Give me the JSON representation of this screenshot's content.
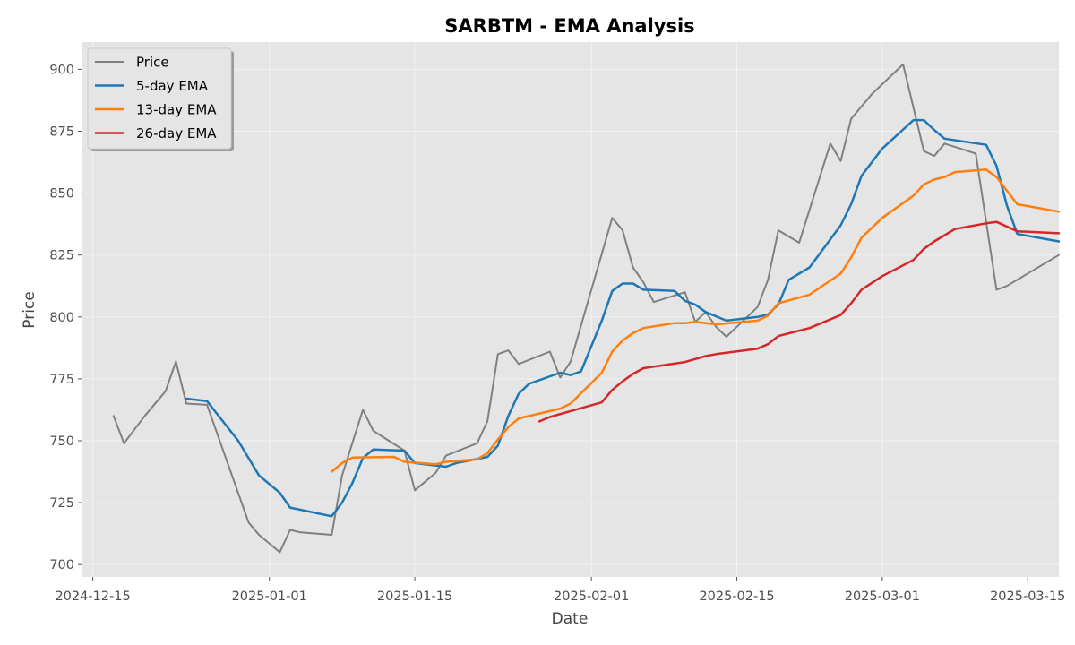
{
  "chart_data": {
    "type": "line",
    "title": "SARBTM - EMA Analysis",
    "xlabel": "Date",
    "ylabel": "Price",
    "xlim": [
      "2024-12-14",
      "2025-03-18"
    ],
    "ylim": [
      695,
      911
    ],
    "x_ticks": [
      "2024-12-15",
      "2025-01-01",
      "2025-01-15",
      "2025-02-01",
      "2025-02-15",
      "2025-03-01",
      "2025-03-15"
    ],
    "y_ticks": [
      700,
      725,
      750,
      775,
      800,
      825,
      850,
      875,
      900
    ],
    "grid": true,
    "legend_position": "top-left",
    "colors": {
      "background": "#e5e5e5",
      "grid": "#f2f2f2",
      "price": "#808080",
      "ema5": "#1f77b4",
      "ema13": "#ff7f0e",
      "ema26": "#d62728"
    },
    "series": [
      {
        "name": "Price",
        "color": "#808080",
        "points": [
          [
            "2024-12-17",
            760
          ],
          [
            "2024-12-18",
            749
          ],
          [
            "2024-12-20",
            760
          ],
          [
            "2024-12-22",
            770
          ],
          [
            "2024-12-23",
            782
          ],
          [
            "2024-12-24",
            765
          ],
          [
            "2024-12-26",
            764.5
          ],
          [
            "2024-12-30",
            717
          ],
          [
            "2024-12-31",
            712
          ],
          [
            "2025-01-02",
            705
          ],
          [
            "2025-01-03",
            714
          ],
          [
            "2025-01-04",
            713
          ],
          [
            "2025-01-07",
            712
          ],
          [
            "2025-01-08",
            736
          ],
          [
            "2025-01-10",
            762.5
          ],
          [
            "2025-01-11",
            754
          ],
          [
            "2025-01-14",
            746
          ],
          [
            "2025-01-15",
            730
          ],
          [
            "2025-01-17",
            737
          ],
          [
            "2025-01-18",
            744
          ],
          [
            "2025-01-21",
            749
          ],
          [
            "2025-01-22",
            758
          ],
          [
            "2025-01-23",
            785
          ],
          [
            "2025-01-24",
            786.5
          ],
          [
            "2025-01-25",
            781
          ],
          [
            "2025-01-28",
            786
          ],
          [
            "2025-01-29",
            775.5
          ],
          [
            "2025-01-30",
            782
          ],
          [
            "2025-02-03",
            840
          ],
          [
            "2025-02-04",
            835
          ],
          [
            "2025-02-05",
            820
          ],
          [
            "2025-02-06",
            814
          ],
          [
            "2025-02-07",
            806
          ],
          [
            "2025-02-10",
            810
          ],
          [
            "2025-02-11",
            798
          ],
          [
            "2025-02-12",
            802
          ],
          [
            "2025-02-13",
            796
          ],
          [
            "2025-02-14",
            792
          ],
          [
            "2025-02-17",
            804
          ],
          [
            "2025-02-18",
            815
          ],
          [
            "2025-02-19",
            835
          ],
          [
            "2025-02-21",
            830
          ],
          [
            "2025-02-24",
            870
          ],
          [
            "2025-02-25",
            863
          ],
          [
            "2025-02-26",
            880
          ],
          [
            "2025-02-28",
            890
          ],
          [
            "2025-03-03",
            902
          ],
          [
            "2025-03-05",
            867
          ],
          [
            "2025-03-06",
            865
          ],
          [
            "2025-03-07",
            870
          ],
          [
            "2025-03-10",
            866
          ],
          [
            "2025-03-12",
            811
          ],
          [
            "2025-03-13",
            812.5
          ],
          [
            "2025-03-18",
            825
          ]
        ]
      },
      {
        "name": "5-day EMA",
        "color": "#1f77b4",
        "points": [
          [
            "2024-12-24",
            767
          ],
          [
            "2024-12-26",
            766
          ],
          [
            "2024-12-29",
            750
          ],
          [
            "2024-12-31",
            736
          ],
          [
            "2025-01-02",
            729
          ],
          [
            "2025-01-03",
            723
          ],
          [
            "2025-01-07",
            719.5
          ],
          [
            "2025-01-08",
            725
          ],
          [
            "2025-01-09",
            733
          ],
          [
            "2025-01-10",
            743
          ],
          [
            "2025-01-11",
            746.5
          ],
          [
            "2025-01-14",
            746
          ],
          [
            "2025-01-15",
            741
          ],
          [
            "2025-01-18",
            739.5
          ],
          [
            "2025-01-19",
            741
          ],
          [
            "2025-01-22",
            743.5
          ],
          [
            "2025-01-23",
            748
          ],
          [
            "2025-01-24",
            760
          ],
          [
            "2025-01-25",
            769
          ],
          [
            "2025-01-26",
            773
          ],
          [
            "2025-01-29",
            777.5
          ],
          [
            "2025-01-30",
            776.5
          ],
          [
            "2025-01-31",
            778
          ],
          [
            "2025-02-02",
            798.5
          ],
          [
            "2025-02-03",
            810.5
          ],
          [
            "2025-02-04",
            813.5
          ],
          [
            "2025-02-05",
            813.5
          ],
          [
            "2025-02-06",
            811
          ],
          [
            "2025-02-09",
            810.5
          ],
          [
            "2025-02-10",
            806.5
          ],
          [
            "2025-02-11",
            805
          ],
          [
            "2025-02-12",
            802
          ],
          [
            "2025-02-14",
            798.5
          ],
          [
            "2025-02-17",
            800
          ],
          [
            "2025-02-18",
            801
          ],
          [
            "2025-02-19",
            805
          ],
          [
            "2025-02-20",
            815
          ],
          [
            "2025-02-22",
            820
          ],
          [
            "2025-02-25",
            837
          ],
          [
            "2025-02-26",
            845.5
          ],
          [
            "2025-02-27",
            857
          ],
          [
            "2025-03-01",
            868
          ],
          [
            "2025-03-04",
            879.5
          ],
          [
            "2025-03-05",
            879.5
          ],
          [
            "2025-03-06",
            875.5
          ],
          [
            "2025-03-07",
            872
          ],
          [
            "2025-03-11",
            869.5
          ],
          [
            "2025-03-12",
            861
          ],
          [
            "2025-03-13",
            845
          ],
          [
            "2025-03-14",
            833.5
          ],
          [
            "2025-03-18",
            830.5
          ]
        ]
      },
      {
        "name": "13-day EMA",
        "color": "#ff7f0e",
        "points": [
          [
            "2025-01-07",
            737.5
          ],
          [
            "2025-01-08",
            741
          ],
          [
            "2025-01-09",
            743.2
          ],
          [
            "2025-01-13",
            743.5
          ],
          [
            "2025-01-14",
            741.5
          ],
          [
            "2025-01-17",
            740.5
          ],
          [
            "2025-01-18",
            741.5
          ],
          [
            "2025-01-21",
            742.5
          ],
          [
            "2025-01-22",
            745
          ],
          [
            "2025-01-23",
            750.5
          ],
          [
            "2025-01-24",
            755.5
          ],
          [
            "2025-01-25",
            759
          ],
          [
            "2025-01-29",
            763
          ],
          [
            "2025-01-30",
            765
          ],
          [
            "2025-02-02",
            777.5
          ],
          [
            "2025-02-03",
            786
          ],
          [
            "2025-02-04",
            790.5
          ],
          [
            "2025-02-05",
            793.5
          ],
          [
            "2025-02-06",
            795.5
          ],
          [
            "2025-02-09",
            797.5
          ],
          [
            "2025-02-10",
            797.5
          ],
          [
            "2025-02-11",
            798
          ],
          [
            "2025-02-13",
            797
          ],
          [
            "2025-02-17",
            798.5
          ],
          [
            "2025-02-18",
            800.5
          ],
          [
            "2025-02-19",
            805.5
          ],
          [
            "2025-02-22",
            809
          ],
          [
            "2025-02-25",
            817.5
          ],
          [
            "2025-02-26",
            824
          ],
          [
            "2025-02-27",
            832
          ],
          [
            "2025-03-01",
            840
          ],
          [
            "2025-03-04",
            849
          ],
          [
            "2025-03-05",
            853.5
          ],
          [
            "2025-03-06",
            855.5
          ],
          [
            "2025-03-07",
            856.5
          ],
          [
            "2025-03-08",
            858.5
          ],
          [
            "2025-03-11",
            859.5
          ],
          [
            "2025-03-12",
            856.5
          ],
          [
            "2025-03-14",
            845.5
          ],
          [
            "2025-03-18",
            842.5
          ]
        ]
      },
      {
        "name": "26-day EMA",
        "color": "#d62728",
        "points": [
          [
            "2025-01-27",
            757.8
          ],
          [
            "2025-01-28",
            759.6
          ],
          [
            "2025-02-02",
            765.5
          ],
          [
            "2025-02-03",
            770.5
          ],
          [
            "2025-02-04",
            774
          ],
          [
            "2025-02-05",
            777
          ],
          [
            "2025-02-06",
            779.3
          ],
          [
            "2025-02-10",
            781.8
          ],
          [
            "2025-02-11",
            783
          ],
          [
            "2025-02-12",
            784.2
          ],
          [
            "2025-02-13",
            785
          ],
          [
            "2025-02-17",
            787.2
          ],
          [
            "2025-02-18",
            789
          ],
          [
            "2025-02-19",
            792.3
          ],
          [
            "2025-02-22",
            795.5
          ],
          [
            "2025-02-25",
            800.8
          ],
          [
            "2025-02-26",
            805.5
          ],
          [
            "2025-02-27",
            811
          ],
          [
            "2025-03-01",
            816.5
          ],
          [
            "2025-03-04",
            823
          ],
          [
            "2025-03-05",
            827.5
          ],
          [
            "2025-03-06",
            830.5
          ],
          [
            "2025-03-08",
            835.5
          ],
          [
            "2025-03-11",
            837.8
          ],
          [
            "2025-03-12",
            838.4
          ],
          [
            "2025-03-14",
            834.6
          ],
          [
            "2025-03-18",
            833.8
          ]
        ]
      }
    ]
  }
}
